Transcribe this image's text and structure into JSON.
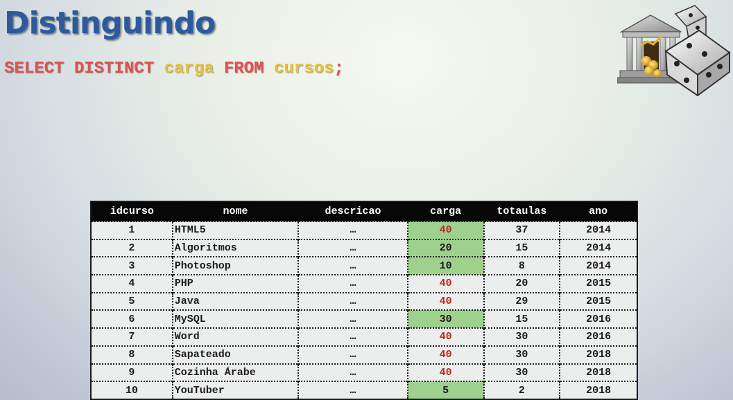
{
  "slide": {
    "title": "Distinguindo",
    "sql": {
      "select": "SELECT DISTINCT",
      "column": "carga",
      "from": "FROM",
      "table": "cursos",
      "end": ";"
    }
  },
  "colors": {
    "title": "#2c5a9e",
    "keyword": "#e05050",
    "identifier": "#e8c23a",
    "highlight": "#9fd18e",
    "carga_text": "#c0271f"
  },
  "table": {
    "headers": [
      "idcurso",
      "nome",
      "descricao",
      "carga",
      "totaulas",
      "ano"
    ],
    "rows": [
      {
        "idcurso": "1",
        "nome": "HTML5",
        "descricao": "…",
        "carga": "40",
        "totaulas": "37",
        "ano": "2014"
      },
      {
        "idcurso": "2",
        "nome": "Algoritmos",
        "descricao": "…",
        "carga": "20",
        "totaulas": "15",
        "ano": "2014"
      },
      {
        "idcurso": "3",
        "nome": "Photoshop",
        "descricao": "…",
        "carga": "10",
        "totaulas": "8",
        "ano": "2014"
      },
      {
        "idcurso": "4",
        "nome": "PHP",
        "descricao": "…",
        "carga": "40",
        "totaulas": "20",
        "ano": "2015"
      },
      {
        "idcurso": "5",
        "nome": "Java",
        "descricao": "…",
        "carga": "40",
        "totaulas": "29",
        "ano": "2015"
      },
      {
        "idcurso": "6",
        "nome": "MySQL",
        "descricao": "…",
        "carga": "30",
        "totaulas": "15",
        "ano": "2016"
      },
      {
        "idcurso": "7",
        "nome": "Word",
        "descricao": "…",
        "carga": "40",
        "totaulas": "30",
        "ano": "2016"
      },
      {
        "idcurso": "8",
        "nome": "Sapateado",
        "descricao": "…",
        "carga": "40",
        "totaulas": "30",
        "ano": "2018"
      },
      {
        "idcurso": "9",
        "nome": "Cozinha Árabe",
        "descricao": "…",
        "carga": "40",
        "totaulas": "30",
        "ano": "2018"
      },
      {
        "idcurso": "10",
        "nome": "YouTuber",
        "descricao": "…",
        "carga": "5",
        "totaulas": "2",
        "ano": "2018"
      }
    ],
    "distinct_highlight_rows": [
      0,
      1,
      2,
      5,
      9
    ],
    "icons": [
      "bank-building-icon",
      "dice-icon"
    ]
  }
}
